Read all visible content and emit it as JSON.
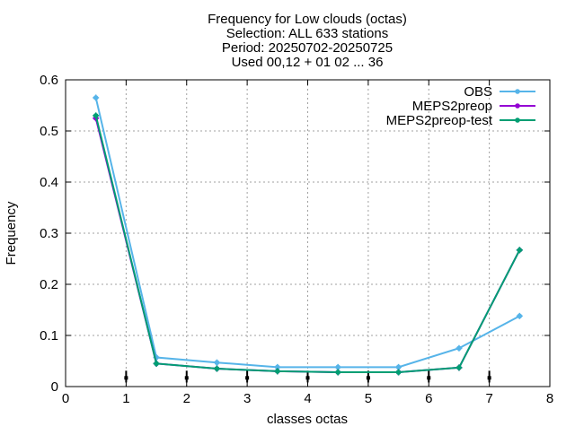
{
  "chart_data": {
    "type": "line",
    "title": [
      "Frequency  for Low clouds (octas)",
      "Selection: ALL    633 stations",
      "Period: 20250702-20250725",
      "Used 00,12 + 01 02 ... 36"
    ],
    "xlabel": "classes octas",
    "ylabel": "Frequency",
    "xlim": [
      0,
      8
    ],
    "ylim": [
      0,
      0.6
    ],
    "xticks": [
      "0",
      "1",
      "2",
      "3",
      "4",
      "5",
      "6",
      "7",
      "8"
    ],
    "yticks": [
      "0",
      "0.1",
      "0.2",
      "0.3",
      "0.4",
      "0.5",
      "0.6"
    ],
    "grid": true,
    "legend_position": "top-right",
    "x": [
      0.5,
      1.5,
      2.5,
      3.5,
      4.5,
      5.5,
      6.5,
      7.5
    ],
    "series": [
      {
        "name": "OBS",
        "color": "#56b4e9",
        "values": [
          0.565,
          0.057,
          0.047,
          0.038,
          0.038,
          0.038,
          0.075,
          0.138
        ]
      },
      {
        "name": "MEPS2preop",
        "color": "#9400d3",
        "values": [
          0.525,
          0.045,
          0.035,
          0.03,
          0.028,
          0.028,
          0.037,
          0.267
        ]
      },
      {
        "name": "MEPS2preop-test",
        "color": "#009e73",
        "values": [
          0.53,
          0.045,
          0.035,
          0.03,
          0.028,
          0.028,
          0.037,
          0.267
        ]
      }
    ],
    "error_markers": {
      "x": [
        1,
        2,
        3,
        4,
        5,
        6,
        7
      ],
      "center": 0.017,
      "low": 0.008,
      "high": 0.031
    }
  }
}
